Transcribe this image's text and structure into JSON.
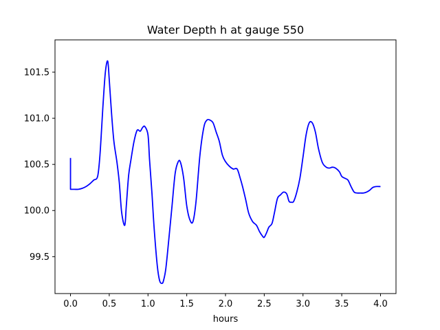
{
  "chart_data": {
    "type": "line",
    "title": "Water Depth h at gauge 550",
    "xlabel": "hours",
    "ylabel": "",
    "xlim": [
      -0.2,
      4.2
    ],
    "ylim": [
      99.1,
      101.85
    ],
    "xticks": [
      0.0,
      0.5,
      1.0,
      1.5,
      2.0,
      2.5,
      3.0,
      3.5,
      4.0
    ],
    "xtick_labels": [
      "0.0",
      "0.5",
      "1.0",
      "1.5",
      "2.0",
      "2.5",
      "3.0",
      "3.5",
      "4.0"
    ],
    "yticks": [
      99.5,
      100.0,
      100.5,
      101.0,
      101.5
    ],
    "ytick_labels": [
      "99.5",
      "100.0",
      "100.5",
      "101.0",
      "101.5"
    ],
    "grid": false,
    "series": [
      {
        "color": "#0000ff",
        "x": [
          0.0,
          0.0,
          0.05,
          0.1,
          0.15,
          0.2,
          0.25,
          0.3,
          0.35,
          0.38,
          0.42,
          0.45,
          0.48,
          0.5,
          0.53,
          0.56,
          0.6,
          0.63,
          0.66,
          0.7,
          0.72,
          0.75,
          0.78,
          0.82,
          0.86,
          0.9,
          0.93,
          0.96,
          1.0,
          1.02,
          1.05,
          1.08,
          1.12,
          1.15,
          1.18,
          1.2,
          1.23,
          1.27,
          1.31,
          1.35,
          1.39,
          1.42,
          1.46,
          1.5,
          1.54,
          1.58,
          1.62,
          1.67,
          1.72,
          1.76,
          1.8,
          1.84,
          1.88,
          1.92,
          1.96,
          2.0,
          2.05,
          2.1,
          2.15,
          2.19,
          2.22,
          2.26,
          2.3,
          2.35,
          2.4,
          2.44,
          2.48,
          2.5,
          2.53,
          2.56,
          2.6,
          2.63,
          2.67,
          2.71,
          2.75,
          2.79,
          2.82,
          2.85,
          2.88,
          2.92,
          2.96,
          3.0,
          3.04,
          3.08,
          3.12,
          3.16,
          3.2,
          3.25,
          3.3,
          3.34,
          3.38,
          3.42,
          3.47,
          3.5,
          3.54,
          3.58,
          3.62,
          3.66,
          3.7,
          3.74,
          3.78,
          3.82,
          3.86,
          3.9,
          3.94,
          4.0
        ],
        "y": [
          100.57,
          100.23,
          100.23,
          100.23,
          100.24,
          100.26,
          100.29,
          100.33,
          100.37,
          100.6,
          101.15,
          101.5,
          101.62,
          101.42,
          101.05,
          100.75,
          100.52,
          100.3,
          99.98,
          99.84,
          100.05,
          100.38,
          100.55,
          100.75,
          100.87,
          100.86,
          100.9,
          100.91,
          100.82,
          100.55,
          100.2,
          99.8,
          99.4,
          99.24,
          99.21,
          99.24,
          99.37,
          99.7,
          100.05,
          100.4,
          100.53,
          100.52,
          100.35,
          100.05,
          99.9,
          99.88,
          100.1,
          100.6,
          100.9,
          100.98,
          100.98,
          100.95,
          100.85,
          100.75,
          100.6,
          100.53,
          100.48,
          100.45,
          100.45,
          100.35,
          100.26,
          100.12,
          99.97,
          99.88,
          99.84,
          99.77,
          99.72,
          99.71,
          99.76,
          99.82,
          99.86,
          99.97,
          100.13,
          100.17,
          100.2,
          100.18,
          100.1,
          100.09,
          100.1,
          100.2,
          100.35,
          100.58,
          100.82,
          100.95,
          100.95,
          100.85,
          100.67,
          100.52,
          100.47,
          100.46,
          100.47,
          100.46,
          100.42,
          100.37,
          100.35,
          100.33,
          100.26,
          100.2,
          100.19,
          100.19,
          100.19,
          100.2,
          100.22,
          100.25,
          100.26,
          100.26
        ]
      }
    ]
  }
}
